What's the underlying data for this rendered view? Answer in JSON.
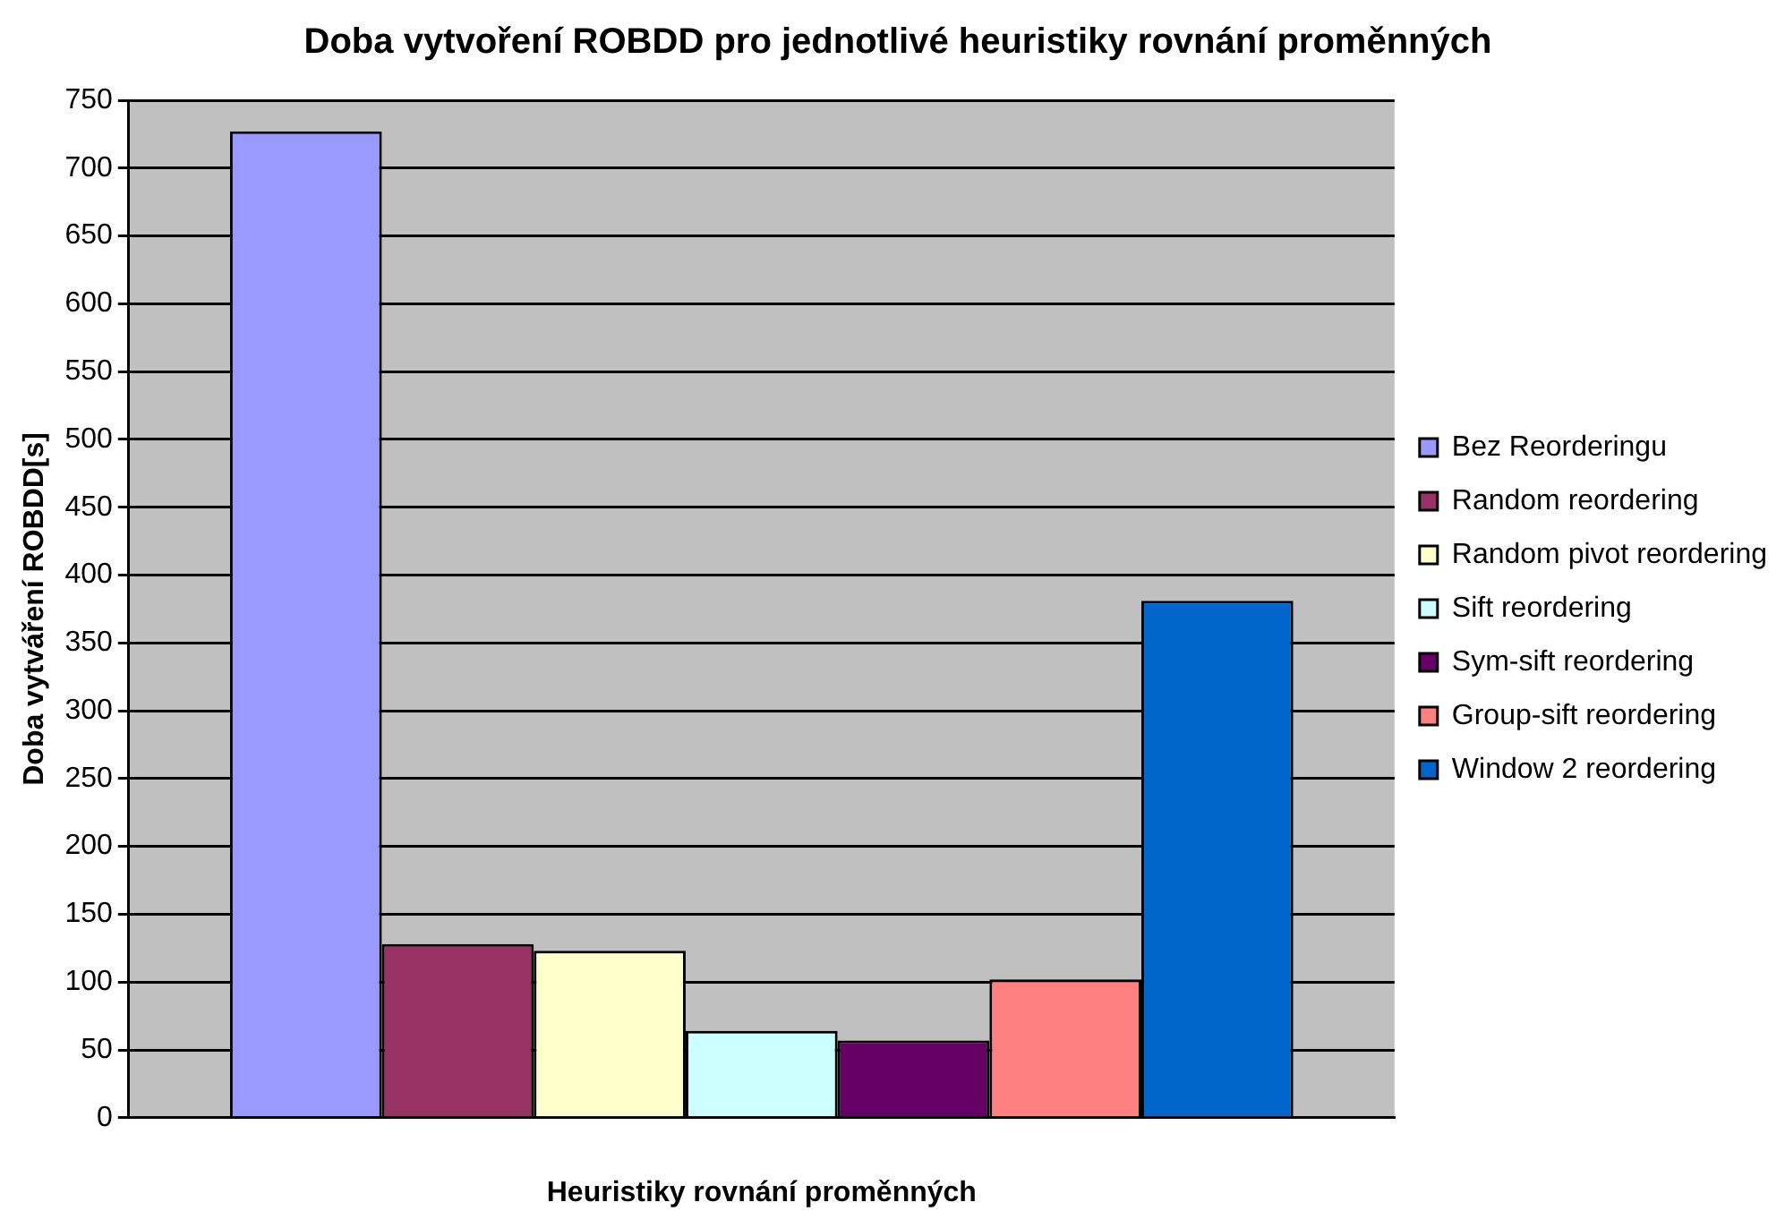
{
  "chart_data": {
    "type": "bar",
    "title": "Doba vytvoření ROBDD pro jednotlivé heuristiky rovnání proměnných",
    "xlabel": "Heuristiky rovnání proměnných",
    "ylabel": "Doba vytváření ROBDD[s]",
    "categories": [
      null
    ],
    "series": [
      {
        "name": "Bez Reorderingu",
        "color": "#9999ff",
        "values": [
          727
        ]
      },
      {
        "name": "Random reordering",
        "color": "#993366",
        "values": [
          128
        ]
      },
      {
        "name": "Random pivot reordering",
        "color": "#ffffcc",
        "values": [
          123
        ]
      },
      {
        "name": "Sift reordering",
        "color": "#ccffff",
        "values": [
          64
        ]
      },
      {
        "name": "Sym-sift reordering",
        "color": "#660066",
        "values": [
          57
        ]
      },
      {
        "name": "Group-sift reordering",
        "color": "#ff8080",
        "values": [
          102
        ]
      },
      {
        "name": "Window 2 reordering",
        "color": "#0066cc",
        "values": [
          381
        ]
      }
    ],
    "ylim": [
      0,
      750
    ],
    "yticks": [
      0,
      50,
      100,
      150,
      200,
      250,
      300,
      350,
      400,
      450,
      500,
      550,
      600,
      650,
      700,
      750
    ],
    "grid": "y",
    "legend": "right"
  }
}
